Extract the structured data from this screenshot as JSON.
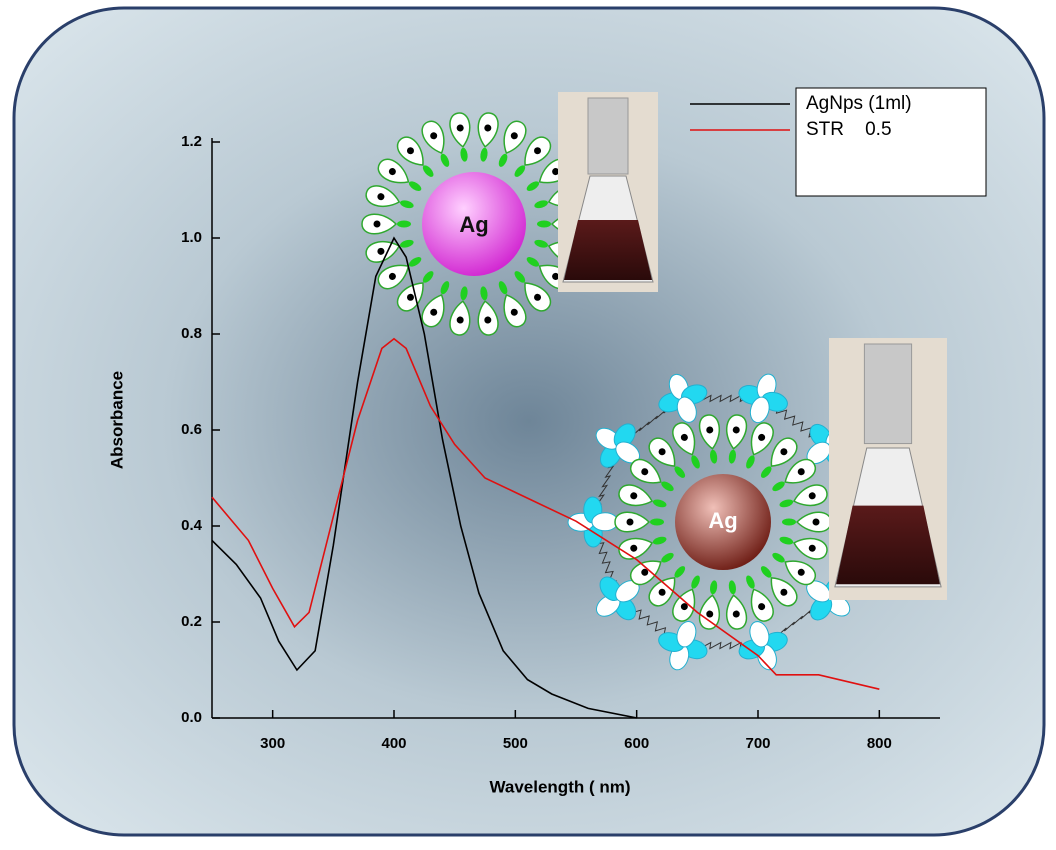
{
  "chart_data": {
    "type": "line",
    "x_label": "Wavelength ( nm)",
    "y_label": "Absorbance",
    "xlim": [
      250,
      850
    ],
    "ylim": [
      0,
      1.2
    ],
    "xticks": [
      300,
      400,
      500,
      600,
      700,
      800
    ],
    "yticks": [
      {
        "value": 0,
        "label": "0.0"
      },
      0.2,
      0.4,
      0.6,
      0.8,
      {
        "value": 1,
        "label": "1.0"
      },
      1.2
    ],
    "legend": "upper right",
    "annotations": [
      "Ag",
      "Ag"
    ],
    "series": [
      {
        "name": "AgNps (1ml)",
        "color": "#000000",
        "x": [
          250,
          270,
          290,
          305,
          320,
          335,
          350,
          370,
          385,
          400,
          410,
          425,
          440,
          455,
          470,
          490,
          510,
          530,
          560,
          600
        ],
        "values": [
          0.37,
          0.32,
          0.25,
          0.16,
          0.1,
          0.14,
          0.36,
          0.7,
          0.92,
          1.0,
          0.96,
          0.8,
          0.58,
          0.4,
          0.26,
          0.14,
          0.08,
          0.05,
          0.02,
          0.0
        ]
      },
      {
        "name": "STR    0.5",
        "color": "#e01010",
        "x": [
          250,
          280,
          300,
          318,
          330,
          350,
          370,
          390,
          400,
          410,
          430,
          450,
          475,
          500,
          550,
          600,
          650,
          700,
          715,
          750,
          800
        ],
        "values": [
          0.46,
          0.37,
          0.27,
          0.19,
          0.22,
          0.42,
          0.62,
          0.77,
          0.79,
          0.77,
          0.65,
          0.57,
          0.5,
          0.47,
          0.41,
          0.33,
          0.22,
          0.13,
          0.09,
          0.09,
          0.06
        ]
      }
    ]
  }
}
